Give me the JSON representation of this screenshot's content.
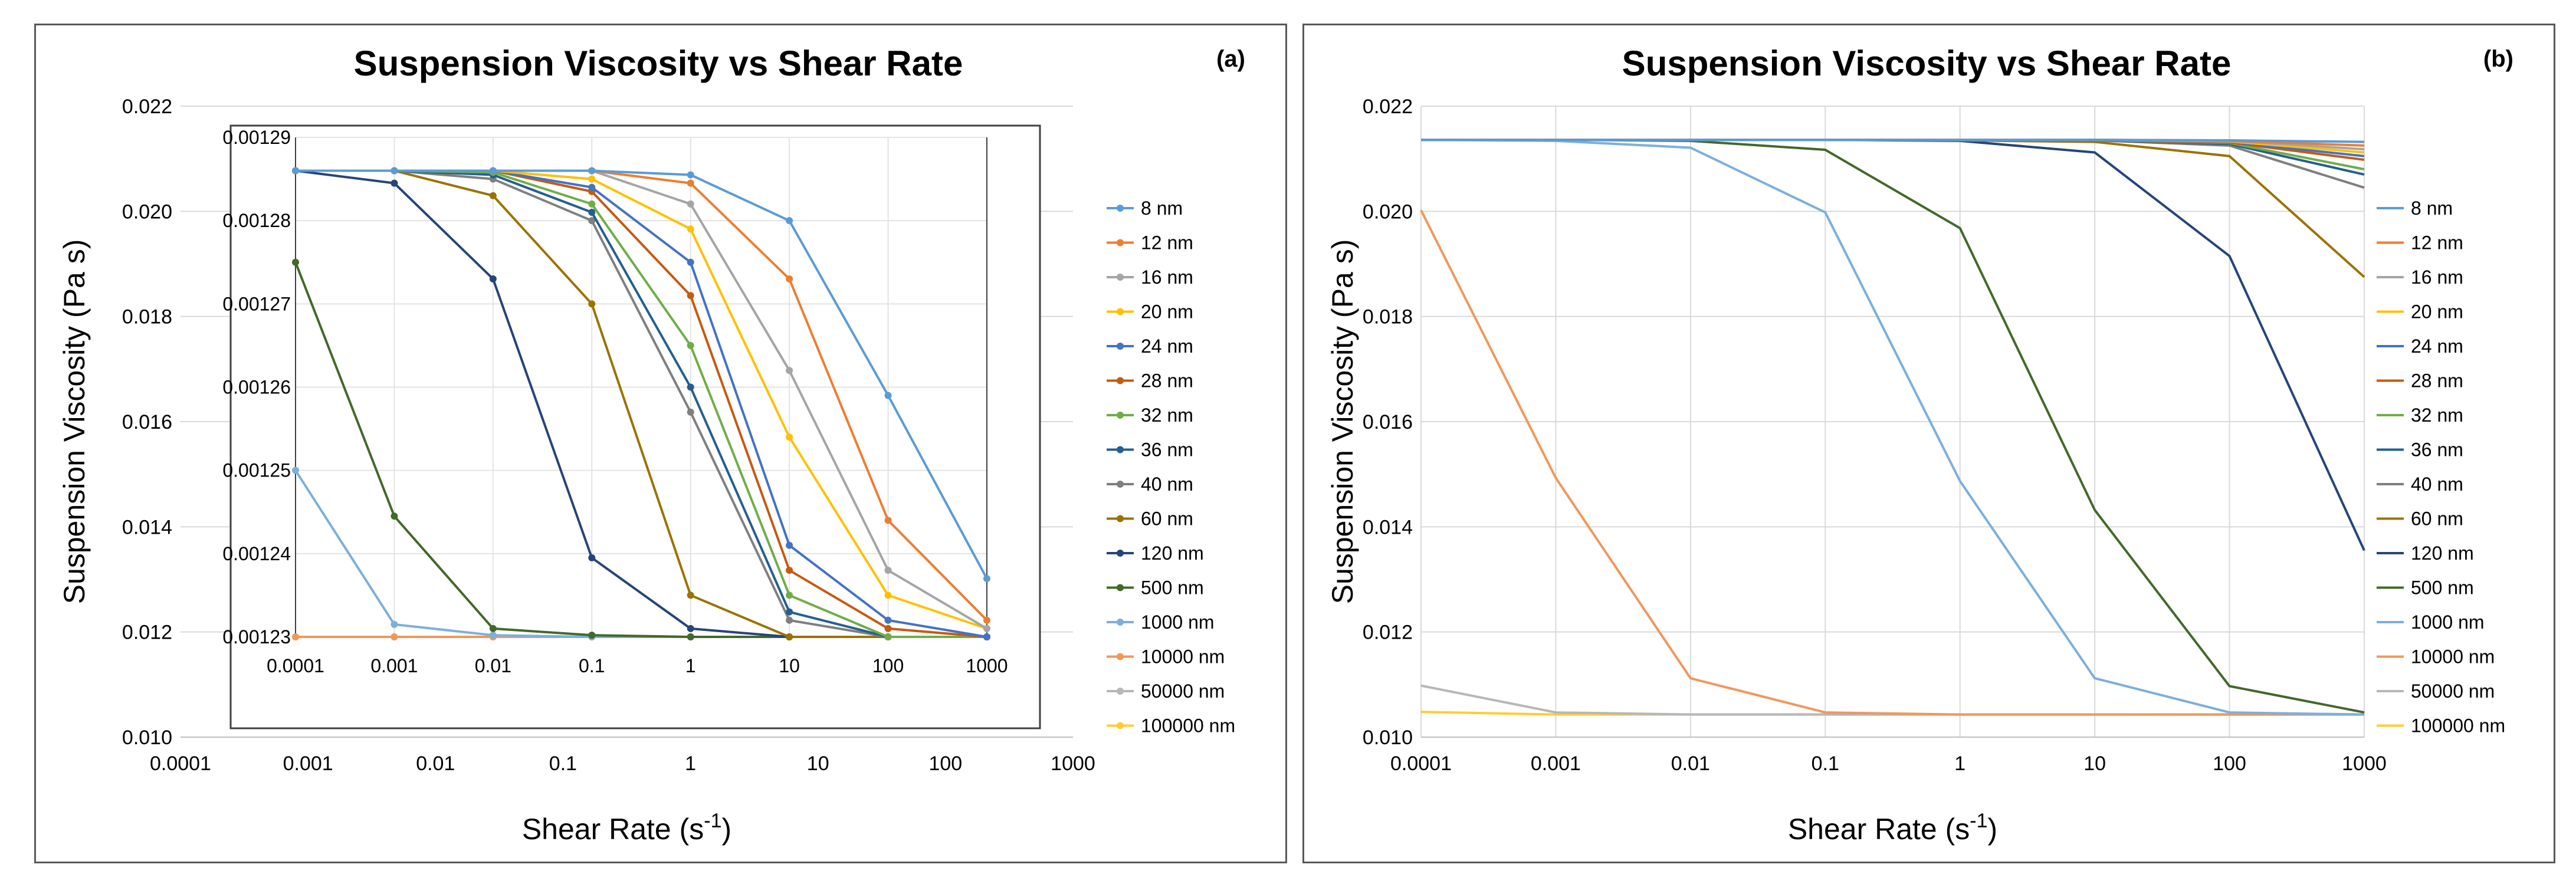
{
  "chart_data": [
    {
      "type": "line",
      "title": "Suspension Viscosity vs Shear Rate",
      "panel_label": "(a)",
      "xlabel": "Shear Rate (s",
      "xlabel_sup": "-1",
      "xlabel_end": ")",
      "ylabel": "Suspension Viscosity (Pa s)",
      "x_scale": "log",
      "xlim": [
        0.0001,
        1000
      ],
      "ylim": [
        0.01,
        0.022
      ],
      "x_ticks": [
        "0.0001",
        "0.001",
        "0.01",
        "0.1",
        "1",
        "10",
        "100",
        "1000"
      ],
      "y_ticks": [
        "0.010",
        "0.012",
        "0.014",
        "0.016",
        "0.018",
        "0.020",
        "0.022"
      ],
      "grid": "horizontal",
      "legend": "right",
      "legend_entries": [
        {
          "name": "8 nm",
          "color": "#5B9BD5"
        },
        {
          "name": "12 nm",
          "color": "#ED7D31"
        },
        {
          "name": "16 nm",
          "color": "#A5A5A5"
        },
        {
          "name": "20 nm",
          "color": "#FFC000"
        },
        {
          "name": "24 nm",
          "color": "#4472C4"
        },
        {
          "name": "28 nm",
          "color": "#C55A11"
        },
        {
          "name": "32 nm",
          "color": "#70AD47"
        },
        {
          "name": "36 nm",
          "color": "#255E91"
        },
        {
          "name": "40 nm",
          "color": "#7F7F7F"
        },
        {
          "name": "60 nm",
          "color": "#997300"
        },
        {
          "name": "120 nm",
          "color": "#264478"
        },
        {
          "name": "500 nm",
          "color": "#43682B"
        },
        {
          "name": "1000 nm",
          "color": "#7CAFDD"
        },
        {
          "name": "10000 nm",
          "color": "#F1975A"
        },
        {
          "name": "50000 nm",
          "color": "#B7B7B7"
        },
        {
          "name": "100000 nm",
          "color": "#FFCD33"
        }
      ],
      "inset": {
        "xlim": [
          0.0001,
          1000
        ],
        "ylim": [
          0.00123,
          0.00129
        ],
        "x_ticks": [
          "0.0001",
          "0.001",
          "0.01",
          "0.1",
          "1",
          "10",
          "100",
          "1000"
        ],
        "y_ticks": [
          "0.00123",
          "0.00124",
          "0.00125",
          "0.00126",
          "0.00127",
          "0.00128",
          "0.00129"
        ],
        "x": [
          0.0001,
          0.001,
          0.01,
          0.1,
          1,
          10,
          100,
          1000
        ],
        "series": [
          {
            "name": "8 nm",
            "values": [
              0.001286,
              0.001286,
              0.001286,
              0.001286,
              0.0012855,
              0.00128,
              0.001259,
              0.001237
            ]
          },
          {
            "name": "12 nm",
            "values": [
              0.001286,
              0.001286,
              0.001286,
              0.001286,
              0.0012845,
              0.001273,
              0.001244,
              0.001232
            ]
          },
          {
            "name": "16 nm",
            "values": [
              0.001286,
              0.001286,
              0.001286,
              0.001286,
              0.001282,
              0.001262,
              0.001238,
              0.001231
            ]
          },
          {
            "name": "20 nm",
            "values": [
              0.001286,
              0.001286,
              0.001286,
              0.001285,
              0.001279,
              0.001254,
              0.001235,
              0.001231
            ]
          },
          {
            "name": "24 nm",
            "values": [
              0.001286,
              0.001286,
              0.001286,
              0.001284,
              0.001275,
              0.001241,
              0.001232,
              0.00123
            ]
          },
          {
            "name": "28 nm",
            "values": [
              0.001286,
              0.001286,
              0.001286,
              0.0012835,
              0.001271,
              0.001238,
              0.001231,
              0.00123
            ]
          },
          {
            "name": "32 nm",
            "values": [
              0.001286,
              0.001286,
              0.0012858,
              0.001282,
              0.001265,
              0.001235,
              0.00123,
              0.00123
            ]
          },
          {
            "name": "36 nm",
            "values": [
              0.001286,
              0.001286,
              0.0012855,
              0.001281,
              0.00126,
              0.001233,
              0.00123,
              0.00123
            ]
          },
          {
            "name": "40 nm",
            "values": [
              0.001286,
              0.001286,
              0.001285,
              0.00128,
              0.001257,
              0.001232,
              0.00123,
              0.00123
            ]
          },
          {
            "name": "60 nm",
            "values": [
              0.001286,
              0.001286,
              0.001283,
              0.00127,
              0.001235,
              0.00123,
              0.00123,
              0.00123
            ]
          },
          {
            "name": "120 nm",
            "values": [
              0.001286,
              0.0012845,
              0.001273,
              0.0012395,
              0.001231,
              0.00123,
              0.00123,
              0.00123
            ]
          },
          {
            "name": "500 nm",
            "values": [
              0.001275,
              0.0012445,
              0.001231,
              0.0012302,
              0.00123,
              0.00123,
              0.00123,
              0.00123
            ]
          },
          {
            "name": "1000 nm",
            "values": [
              0.00125,
              0.0012315,
              0.0012302,
              0.00123,
              0.00123,
              0.00123,
              0.00123,
              0.00123
            ]
          },
          {
            "name": "10000 nm",
            "values": [
              0.00123,
              0.00123,
              0.00123,
              0.00123,
              0.00123,
              0.00123,
              0.00123,
              0.00123
            ]
          },
          {
            "name": "50000 nm",
            "values": [
              0.00123,
              0.00123,
              0.00123,
              0.00123,
              0.00123,
              0.00123,
              0.00123,
              0.00123
            ]
          },
          {
            "name": "100000 nm",
            "values": [
              0.00123,
              0.00123,
              0.00123,
              0.00123,
              0.00123,
              0.00123,
              0.00123,
              0.00123
            ]
          }
        ]
      }
    },
    {
      "type": "line",
      "title": "Suspension Viscosity vs Shear Rate",
      "panel_label": "(b)",
      "xlabel": "Shear Rate (s",
      "xlabel_sup": "-1",
      "xlabel_end": ")",
      "ylabel": "Suspension Viscosity (Pa s)",
      "x_scale": "log",
      "xlim": [
        0.0001,
        1000
      ],
      "ylim": [
        0.01,
        0.022
      ],
      "x_ticks": [
        "0.0001",
        "0.001",
        "0.01",
        "0.1",
        "1",
        "10",
        "100",
        "1000"
      ],
      "y_ticks": [
        "0.010",
        "0.012",
        "0.014",
        "0.016",
        "0.018",
        "0.020",
        "0.022"
      ],
      "grid": "both",
      "legend": "right",
      "x": [
        0.0001,
        0.001,
        0.01,
        0.1,
        1,
        10,
        100,
        1000
      ],
      "series": [
        {
          "name": "8 nm",
          "color": "#5B9BD5",
          "values": [
            0.02136,
            0.02136,
            0.02136,
            0.02136,
            0.02136,
            0.02136,
            0.02135,
            0.02132
          ]
        },
        {
          "name": "12 nm",
          "color": "#ED7D31",
          "values": [
            0.02136,
            0.02136,
            0.02136,
            0.02136,
            0.02136,
            0.02136,
            0.02134,
            0.02125
          ]
        },
        {
          "name": "16 nm",
          "color": "#A5A5A5",
          "values": [
            0.02136,
            0.02136,
            0.02136,
            0.02136,
            0.02136,
            0.02136,
            0.02134,
            0.02118
          ]
        },
        {
          "name": "20 nm",
          "color": "#FFC000",
          "values": [
            0.02136,
            0.02136,
            0.02136,
            0.02136,
            0.02136,
            0.02136,
            0.02133,
            0.02112
          ]
        },
        {
          "name": "24 nm",
          "color": "#4472C4",
          "values": [
            0.02136,
            0.02136,
            0.02136,
            0.02136,
            0.02136,
            0.02136,
            0.02132,
            0.02105
          ]
        },
        {
          "name": "28 nm",
          "color": "#C55A11",
          "values": [
            0.02136,
            0.02136,
            0.02136,
            0.02136,
            0.02136,
            0.02135,
            0.02131,
            0.02098
          ]
        },
        {
          "name": "32 nm",
          "color": "#70AD47",
          "values": [
            0.02136,
            0.02136,
            0.02136,
            0.02136,
            0.02136,
            0.02135,
            0.0213,
            0.0208
          ]
        },
        {
          "name": "36 nm",
          "color": "#255E91",
          "values": [
            0.02136,
            0.02136,
            0.02136,
            0.02136,
            0.02136,
            0.02135,
            0.02128,
            0.0207
          ]
        },
        {
          "name": "40 nm",
          "color": "#7F7F7F",
          "values": [
            0.02136,
            0.02136,
            0.02136,
            0.02136,
            0.02136,
            0.02135,
            0.02125,
            0.02045
          ]
        },
        {
          "name": "60 nm",
          "color": "#997300",
          "values": [
            0.02136,
            0.02136,
            0.02136,
            0.02136,
            0.02135,
            0.02132,
            0.02105,
            0.01875
          ]
        },
        {
          "name": "120 nm",
          "color": "#264478",
          "values": [
            0.02136,
            0.02136,
            0.02136,
            0.02136,
            0.02134,
            0.02112,
            0.01915,
            0.01355
          ]
        },
        {
          "name": "500 nm",
          "color": "#43682B",
          "values": [
            0.02136,
            0.02136,
            0.02134,
            0.02117,
            0.01968,
            0.01432,
            0.01097,
            0.01047
          ]
        },
        {
          "name": "1000 nm",
          "color": "#7CAFDD",
          "values": [
            0.02136,
            0.02134,
            0.02121,
            0.01998,
            0.01487,
            0.01112,
            0.01047,
            0.01043
          ]
        },
        {
          "name": "10000 nm",
          "color": "#F1975A",
          "values": [
            0.02002,
            0.01493,
            0.01112,
            0.01047,
            0.01043,
            0.01043,
            0.01043,
            0.01043
          ]
        },
        {
          "name": "50000 nm",
          "color": "#B7B7B7",
          "values": [
            0.01098,
            0.01047,
            0.01043,
            0.01043,
            0.01043,
            0.01043,
            0.01043,
            0.01043
          ]
        },
        {
          "name": "100000 nm",
          "color": "#FFCD33",
          "values": [
            0.01048,
            0.01043,
            0.01043,
            0.01043,
            0.01043,
            0.01043,
            0.01043,
            0.01043
          ]
        }
      ]
    }
  ]
}
